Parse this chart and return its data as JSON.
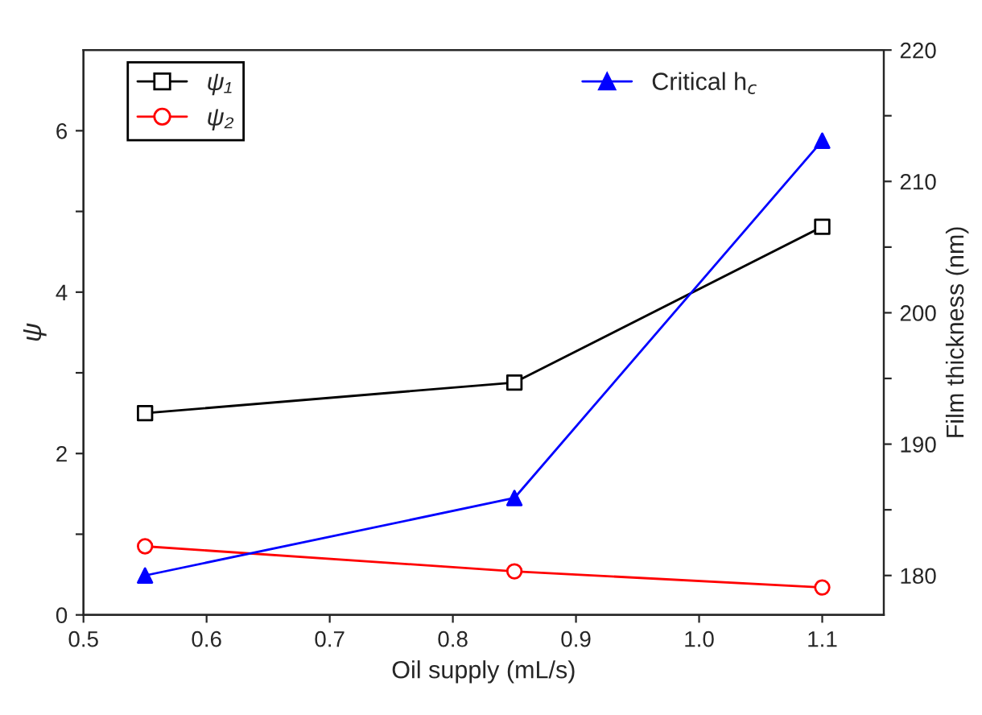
{
  "chart_data": {
    "type": "line",
    "xlabel": "Oil supply (mL/s)",
    "ylabel": "ψ",
    "y2label": "Film thickness (nm)",
    "x": [
      0.55,
      0.85,
      1.1
    ],
    "xlim": [
      0.5,
      1.15
    ],
    "xticks": [
      0.5,
      0.6,
      0.7,
      0.8,
      0.9,
      {
        "value": 1.0,
        "label": "1.0"
      },
      1.1
    ],
    "ylim": [
      0,
      7
    ],
    "yticks": [
      0,
      {
        "value": 1,
        "label": null
      },
      2,
      {
        "value": 3,
        "label": null
      },
      4,
      {
        "value": 5,
        "label": null
      },
      6
    ],
    "y2lim": [
      177,
      220
    ],
    "y2ticks": [
      180,
      {
        "value": 185,
        "label": null
      },
      190,
      {
        "value": 195,
        "label": null
      },
      200,
      {
        "value": 205,
        "label": null
      },
      210,
      {
        "value": 215,
        "label": null
      },
      220
    ],
    "legend": "top left",
    "grid": false,
    "line_style": "solid",
    "series": [
      {
        "name": "ψ₁",
        "color": "#000000",
        "marker": "square",
        "values": [
          2.5,
          2.88,
          4.81
        ]
      },
      {
        "name": "ψ₂",
        "color": "#ff0000",
        "marker": "circle",
        "values": [
          0.85,
          0.54,
          0.34
        ]
      },
      {
        "name": "Critical h$_{c}$",
        "color": "#0000ff",
        "marker": "triangle",
        "axis": "y2",
        "values": [
          180,
          185.9,
          213.1
        ]
      }
    ]
  }
}
